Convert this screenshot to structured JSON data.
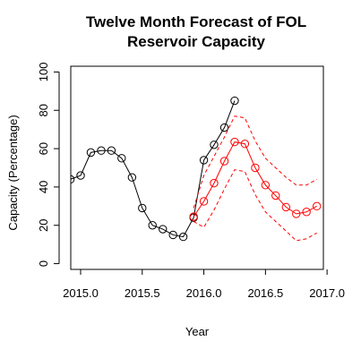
{
  "chart_data": {
    "type": "line",
    "title_lines": [
      "Twelve Month Forecast of FOL",
      "Reservoir Capacity"
    ],
    "xlabel": "Year",
    "ylabel": "Capacity (Percentage)",
    "xlim": [
      2014.92,
      2016.97
    ],
    "ylim": [
      -3,
      103
    ],
    "x_ticks": [
      2015.0,
      2015.5,
      2016.0,
      2016.5,
      2017.0
    ],
    "x_tick_labels": [
      "2015.0",
      "2015.5",
      "2016.0",
      "2016.5",
      "2017.0"
    ],
    "y_ticks": [
      0,
      20,
      40,
      60,
      80,
      100
    ],
    "y_tick_labels": [
      "0",
      "20",
      "40",
      "60",
      "80",
      "100"
    ],
    "grid": false,
    "series": [
      {
        "color": "#000000",
        "style": "line-with-open-circles",
        "x": [
          2014.917,
          2015.0,
          2015.083,
          2015.167,
          2015.25,
          2015.333,
          2015.417,
          2015.5,
          2015.583,
          2015.667,
          2015.75,
          2015.833,
          2015.917,
          2016.0,
          2016.083,
          2016.167,
          2016.25
        ],
        "values": [
          44,
          46,
          58,
          59,
          59,
          55,
          45,
          29,
          20,
          18,
          15,
          14,
          24,
          54,
          62,
          71,
          85
        ]
      },
      {
        "color": "#ff0000",
        "style": "line-with-open-circles",
        "x": [
          2015.917,
          2016.0,
          2016.083,
          2016.167,
          2016.25,
          2016.333,
          2016.417,
          2016.5,
          2016.583,
          2016.667,
          2016.75,
          2016.833,
          2016.917
        ],
        "values": [
          24.5,
          32.5,
          42,
          53.5,
          63.5,
          62.5,
          50,
          41,
          35.5,
          29.5,
          26,
          27,
          30
        ]
      },
      {
        "color": "#ff0000",
        "style": "dashed",
        "x": [
          2015.917,
          2016.0,
          2016.083,
          2016.167,
          2016.25,
          2016.333,
          2016.417,
          2016.5,
          2016.583,
          2016.667,
          2016.75,
          2016.833,
          2016.917
        ],
        "values": [
          29,
          46,
          56,
          66,
          77,
          76,
          64,
          55,
          50,
          45,
          41,
          41,
          44
        ]
      },
      {
        "color": "#ff0000",
        "style": "dashed",
        "x": [
          2015.917,
          2016.0,
          2016.083,
          2016.167,
          2016.25,
          2016.333,
          2016.417,
          2016.5,
          2016.583,
          2016.667,
          2016.75,
          2016.833,
          2016.917
        ],
        "values": [
          22,
          19,
          28,
          39,
          49,
          48,
          36,
          27,
          22,
          17,
          12,
          13,
          16
        ]
      }
    ]
  }
}
